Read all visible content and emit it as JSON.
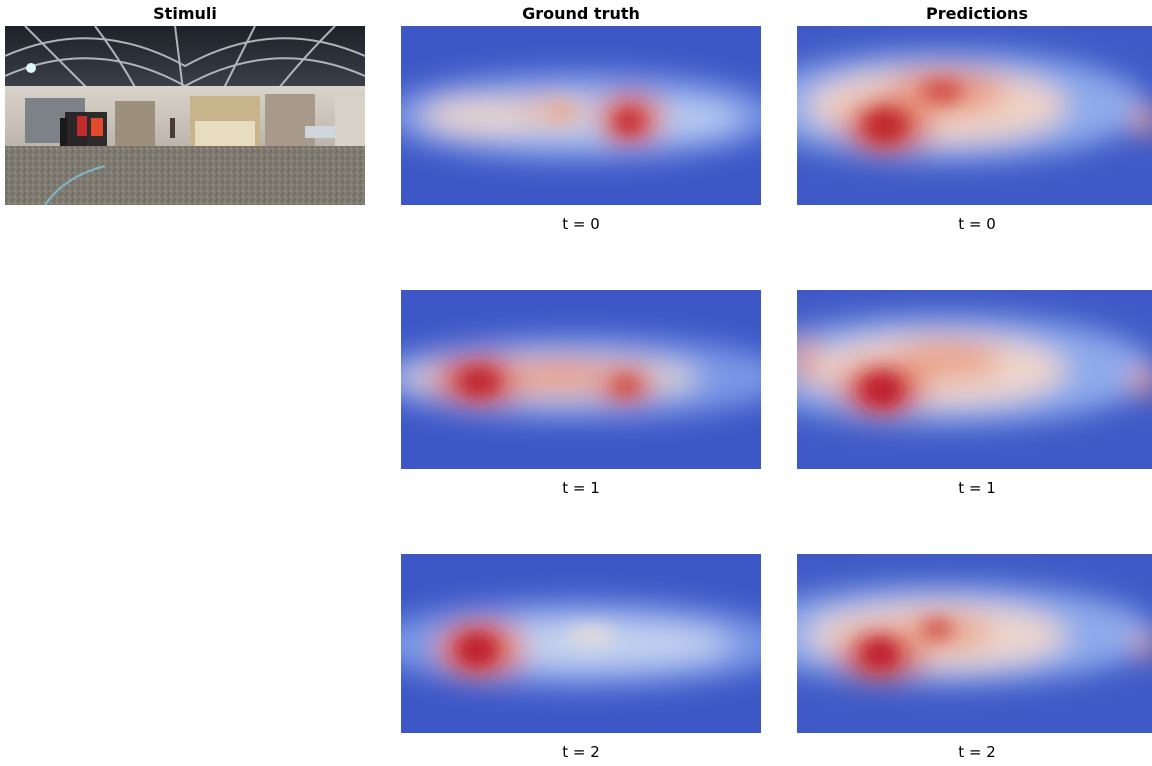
{
  "columns": {
    "stimuli": "Stimuli",
    "ground_truth": "Ground truth",
    "predictions": "Predictions"
  },
  "rows": [
    {
      "caption": "t = 0"
    },
    {
      "caption": "t = 1"
    },
    {
      "caption": "t = 2"
    }
  ],
  "colors": {
    "map_low": "#3b4cc0",
    "map_mid": "#dddddd",
    "map_high": "#b40426"
  }
}
